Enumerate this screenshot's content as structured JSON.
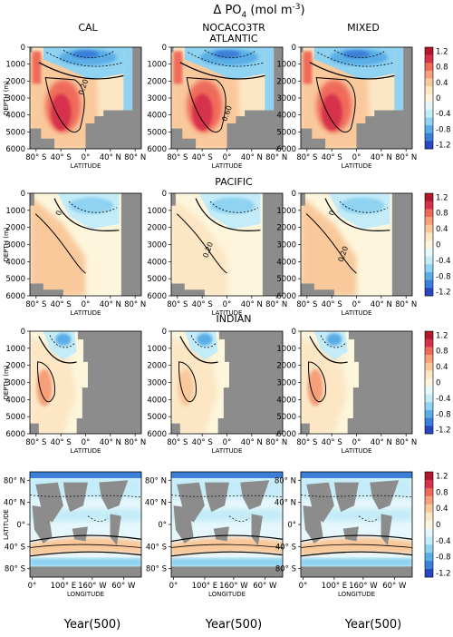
{
  "figure": {
    "title_prefix": "Δ PO",
    "title_sub": "4",
    "title_unit": "(mol m",
    "title_exp": "-3",
    "title_close": ")",
    "footer_label": "Year(500)"
  },
  "chart_data": {
    "type": "heatmap",
    "columns": [
      "CAL",
      "NOCACO3TR",
      "MIXED"
    ],
    "basins": [
      "ATLANTIC",
      "PACIFIC",
      "INDIAN"
    ],
    "section_axes": {
      "ylabel": "DEPTH (m)",
      "xlabel": "LATITUDE",
      "yticks": [
        "0",
        "1000",
        "2000",
        "3000",
        "4000",
        "5000",
        "6000"
      ],
      "xticks": [
        "80° S",
        "40° S",
        "0°",
        "40° N",
        "80° N"
      ],
      "ylim": [
        6000,
        0
      ],
      "xlim": [
        -90,
        90
      ]
    },
    "map_axes": {
      "ylabel": "LATITUDE",
      "xlabel": "LONGITUDE",
      "yticks": [
        "80° N",
        "40° N",
        "0°",
        "40° S",
        "80° S"
      ],
      "xticks": [
        "0°",
        "100° E",
        "160° W",
        "60° W"
      ]
    },
    "colorbar": {
      "ticks": [
        "1.2",
        "0.8",
        "0.4",
        "0",
        "-0.4",
        "-0.8",
        "-1.2"
      ],
      "range": [
        -1.2,
        1.2
      ],
      "colors": [
        "#b2182b",
        "#d6304b",
        "#ef6a5a",
        "#f6a07a",
        "#f9c99c",
        "#fce6c4",
        "#fdf6dc",
        "#e6f7fb",
        "#c4ecf8",
        "#8fd2f1",
        "#5aaee6",
        "#3b7fd8",
        "#2747c0"
      ]
    },
    "contour_labels": [
      {
        "panel": "NOCACO3TR-ATLANTIC",
        "text": "0.60"
      },
      {
        "panel": "CAL-ATLANTIC",
        "text": "0.20"
      },
      {
        "panel": "NOCACO3TR-PACIFIC",
        "text": "0.20"
      },
      {
        "panel": "MIXED-PACIFIC",
        "text": "0.20"
      },
      {
        "panel": "CAL-PACIFIC",
        "text": "0"
      },
      {
        "panel": "MIXED-PACIFIC",
        "text": "0"
      }
    ]
  }
}
